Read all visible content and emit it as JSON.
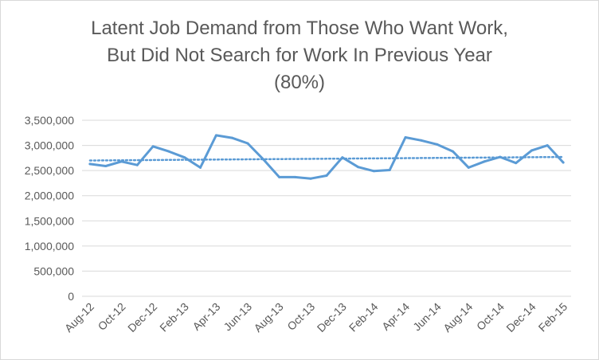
{
  "chart_data": {
    "type": "line",
    "title_lines": [
      "Latent Job Demand from Those Who Want Work,",
      "But Did Not Search for Work In Previous Year",
      "(80%)"
    ],
    "xlabel": "",
    "ylabel": "",
    "ylim": [
      0,
      3500000
    ],
    "yticks": [
      0,
      500000,
      1000000,
      1500000,
      2000000,
      2500000,
      3000000,
      3500000
    ],
    "ytick_labels": [
      "0",
      "500,000",
      "1,000,000",
      "1,500,000",
      "2,000,000",
      "2,500,000",
      "3,000,000",
      "3,500,000"
    ],
    "grid": "horizontal",
    "legend": "none",
    "x": [
      "Aug-12",
      "Sep-12",
      "Oct-12",
      "Nov-12",
      "Dec-12",
      "Jan-13",
      "Feb-13",
      "Mar-13",
      "Apr-13",
      "May-13",
      "Jun-13",
      "Jul-13",
      "Aug-13",
      "Sep-13",
      "Oct-13",
      "Nov-13",
      "Dec-13",
      "Jan-14",
      "Feb-14",
      "Mar-14",
      "Apr-14",
      "May-14",
      "Jun-14",
      "Jul-14",
      "Aug-14",
      "Sep-14",
      "Oct-14",
      "Nov-14",
      "Dec-14",
      "Jan-15",
      "Feb-15"
    ],
    "xtick_labels": [
      "Aug-12",
      "Oct-12",
      "Dec-12",
      "Feb-13",
      "Apr-13",
      "Jun-13",
      "Aug-13",
      "Oct-13",
      "Dec-13",
      "Feb-14",
      "Apr-14",
      "Jun-14",
      "Aug-14",
      "Oct-14",
      "Dec-14",
      "Feb-15"
    ],
    "series": [
      {
        "values": [
          2630000,
          2590000,
          2680000,
          2610000,
          2980000,
          2880000,
          2760000,
          2560000,
          3200000,
          3150000,
          3040000,
          2720000,
          2370000,
          2370000,
          2340000,
          2400000,
          2760000,
          2570000,
          2490000,
          2510000,
          3160000,
          3100000,
          3020000,
          2880000,
          2560000,
          2680000,
          2770000,
          2650000,
          2900000,
          3000000,
          2660000
        ],
        "color": "#5b9bd5",
        "style": "solid"
      },
      {
        "trendline": "linear",
        "from": 2700000,
        "to": 2770000,
        "color": "#5b9bd5",
        "style": "dotted"
      }
    ],
    "colors": {
      "grid": "#d9d9d9",
      "text": "#595959",
      "series": "#5b9bd5"
    }
  }
}
